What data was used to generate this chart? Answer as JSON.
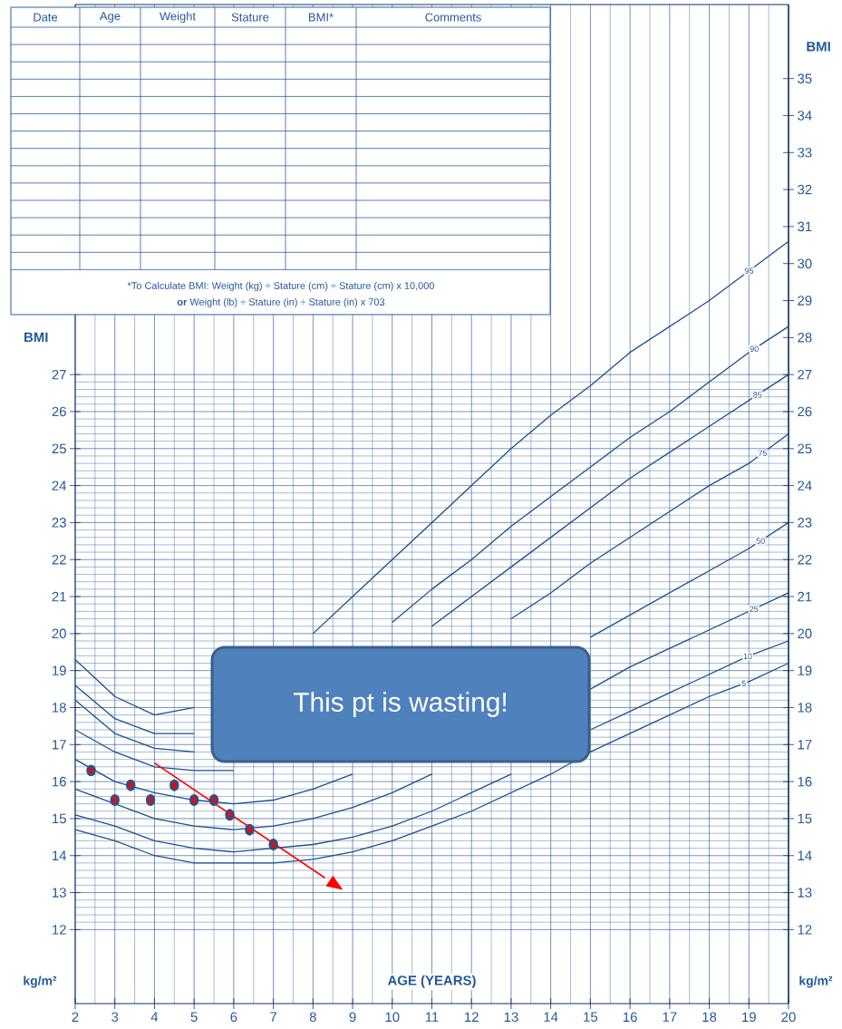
{
  "chart_data": {
    "type": "line",
    "xlabel": "AGE (YEARS)",
    "ylabel": "BMI",
    "y2label": "BMI",
    "x": [
      2,
      3,
      4,
      5,
      6,
      7,
      8,
      9,
      10,
      11,
      12,
      13,
      14,
      15,
      16,
      17,
      18,
      19,
      20
    ],
    "series": [
      {
        "name": "95",
        "color": "#1b4f8f",
        "values": [
          19.3,
          18.3,
          17.8,
          18.0,
          null,
          null,
          20.0,
          21.0,
          22.0,
          23.0,
          24.0,
          25.0,
          25.9,
          26.7,
          27.6,
          28.3,
          29.0,
          29.8,
          30.6
        ]
      },
      {
        "name": "90",
        "color": "#1b4f8f",
        "values": [
          18.6,
          17.7,
          17.3,
          17.3,
          null,
          null,
          null,
          null,
          20.3,
          21.2,
          22.0,
          22.9,
          23.7,
          24.5,
          25.3,
          26.0,
          26.8,
          27.6,
          28.3
        ]
      },
      {
        "name": "85",
        "color": "#1b4f8f",
        "values": [
          18.2,
          17.3,
          16.9,
          16.8,
          null,
          null,
          null,
          null,
          null,
          20.2,
          21.0,
          21.8,
          22.6,
          23.4,
          24.2,
          24.9,
          25.6,
          26.3,
          27.0
        ]
      },
      {
        "name": "75",
        "color": "#1b4f8f",
        "values": [
          17.4,
          16.8,
          16.4,
          16.3,
          16.3,
          null,
          null,
          null,
          null,
          null,
          null,
          20.4,
          21.1,
          21.9,
          22.6,
          23.3,
          24.0,
          24.6,
          25.4
        ]
      },
      {
        "name": "50",
        "color": "#1b4f8f",
        "values": [
          16.6,
          16.0,
          15.7,
          15.5,
          15.4,
          15.5,
          15.8,
          16.2,
          null,
          null,
          null,
          null,
          null,
          19.9,
          20.5,
          21.1,
          21.7,
          22.3,
          23.0
        ]
      },
      {
        "name": "25",
        "color": "#1b4f8f",
        "values": [
          15.8,
          15.4,
          15.0,
          14.8,
          14.7,
          14.8,
          15.0,
          15.3,
          15.7,
          16.2,
          null,
          null,
          null,
          18.5,
          19.1,
          19.6,
          20.1,
          20.6,
          21.1
        ]
      },
      {
        "name": "10",
        "color": "#1b4f8f",
        "values": [
          15.1,
          14.8,
          14.4,
          14.2,
          14.1,
          14.2,
          14.3,
          14.5,
          14.8,
          15.2,
          15.7,
          16.2,
          null,
          17.4,
          17.9,
          18.4,
          18.9,
          19.4,
          19.8
        ]
      },
      {
        "name": "5",
        "color": "#1b4f8f",
        "values": [
          14.7,
          14.4,
          14.0,
          13.8,
          13.8,
          13.8,
          13.9,
          14.1,
          14.4,
          14.8,
          15.2,
          15.7,
          16.2,
          16.8,
          17.3,
          17.8,
          18.3,
          18.7,
          19.2
        ]
      },
      {
        "type": "scatter",
        "color": "#2f4f86",
        "x": [
          2.4,
          3.0,
          3.4,
          3.9,
          4.5,
          5.0,
          5.5,
          5.9,
          6.4,
          7.0
        ],
        "values": [
          16.3,
          15.5,
          15.9,
          15.5,
          15.9,
          15.5,
          15.5,
          15.1,
          14.7,
          14.3
        ]
      },
      {
        "type": "line",
        "color": "#ff0000",
        "x": [
          4.0,
          8.3
        ],
        "values": [
          16.5,
          13.4
        ]
      }
    ],
    "xlim": [
      2,
      20
    ],
    "xticks": [
      2,
      3,
      4,
      5,
      6,
      7,
      8,
      9,
      10,
      11,
      12,
      13,
      14,
      15,
      16,
      17,
      18,
      19,
      20
    ],
    "ylim": [
      10,
      37
    ],
    "yticks": [
      12,
      13,
      14,
      15,
      16,
      17,
      18,
      19,
      20,
      21,
      22,
      23,
      24,
      25,
      26,
      27
    ],
    "y2lim": [
      10,
      37
    ],
    "y2ticks": [
      12,
      13,
      14,
      15,
      16,
      17,
      18,
      19,
      20,
      21,
      22,
      23,
      24,
      25,
      26,
      27,
      28,
      29,
      30,
      31,
      32,
      33,
      34,
      35
    ],
    "grid": true,
    "annotations": [
      "Date",
      "Age",
      "Weight",
      "Stature",
      "BMI*",
      "Comments",
      "*To Calculate BMI: Weight (kg) ÷ Stature (cm) ÷ Stature (cm) x 10,000",
      "**or** Weight (lb) ÷ Stature (in) ÷ Stature (in) x 703",
      "This pt is wasting!",
      "kg/m²",
      "kg/m²"
    ]
  }
}
